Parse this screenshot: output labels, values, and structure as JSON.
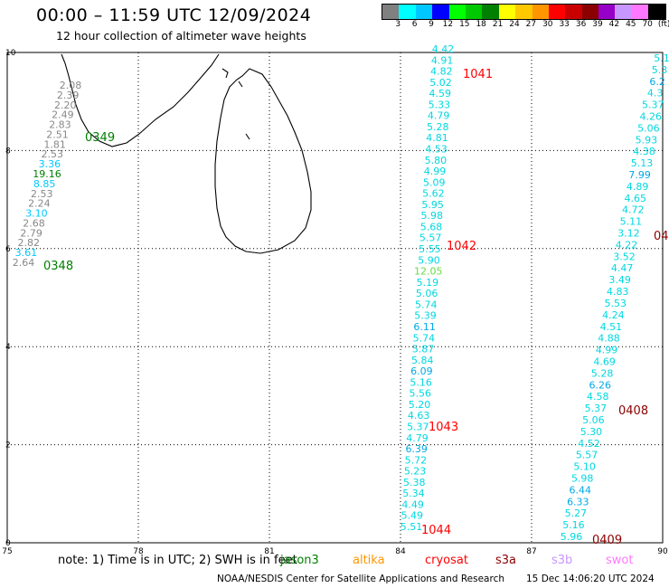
{
  "header": {
    "title": "00:00 – 11:59 UTC 12/09/2024",
    "subtitle": "12 hour collection of altimeter wave heights"
  },
  "legend": {
    "colors": [
      "#808080",
      "#00ffff",
      "#00c8ff",
      "#0000ff",
      "#00ff00",
      "#00c800",
      "#008000",
      "#ffff00",
      "#ffc800",
      "#ff9600",
      "#ff0000",
      "#c80000",
      "#8b0000",
      "#9600c8",
      "#c896ff",
      "#ff78ff",
      "#000000"
    ],
    "labels": [
      "3",
      "6",
      "9",
      "12",
      "15",
      "18",
      "21",
      "24",
      "27",
      "30",
      "33",
      "36",
      "39",
      "42",
      "45",
      "70",
      "(ft)"
    ]
  },
  "map": {
    "x_ticks": [
      "75",
      "78",
      "81",
      "84",
      "87",
      "90"
    ],
    "y_ticks": [
      "0",
      "2",
      "4",
      "6",
      "8",
      "10"
    ]
  },
  "tracks": [
    {
      "id": "left-track",
      "labels": [
        {
          "t": "2.08",
          "c": "#888888"
        },
        {
          "t": "2.39",
          "c": "#888888"
        },
        {
          "t": "2.20",
          "c": "#888888"
        },
        {
          "t": "2.49",
          "c": "#888888"
        },
        {
          "t": "2.83",
          "c": "#888888"
        },
        {
          "t": "2.51",
          "c": "#888888"
        },
        {
          "t": "1.81",
          "c": "#888888"
        },
        {
          "t": "2.53",
          "c": "#888888"
        },
        {
          "t": "3.36",
          "c": "#00c8ff"
        },
        {
          "t": "19.16",
          "c": "#008000"
        },
        {
          "t": "8.85",
          "c": "#00c8ff"
        },
        {
          "t": "2.53",
          "c": "#888888"
        },
        {
          "t": "2.24",
          "c": "#888888"
        },
        {
          "t": "3.10",
          "c": "#00c8ff"
        },
        {
          "t": "2.68",
          "c": "#888888"
        },
        {
          "t": "2.79",
          "c": "#888888"
        },
        {
          "t": "2.82",
          "c": "#888888"
        },
        {
          "t": "3.61",
          "c": "#00c8ff"
        },
        {
          "t": "2.64",
          "c": "#888888"
        }
      ]
    },
    {
      "id": "middle-track",
      "labels": [
        {
          "t": "4.42",
          "c": "#00d8e0"
        },
        {
          "t": "4.91",
          "c": "#00d8e0"
        },
        {
          "t": "4.82",
          "c": "#00d8e0"
        },
        {
          "t": "5.02",
          "c": "#00d8e0"
        },
        {
          "t": "4.59",
          "c": "#00d8e0"
        },
        {
          "t": "5.33",
          "c": "#00d8e0"
        },
        {
          "t": "4.79",
          "c": "#00d8e0"
        },
        {
          "t": "5.28",
          "c": "#00d8e0"
        },
        {
          "t": "4.81",
          "c": "#00d8e0"
        },
        {
          "t": "4.53",
          "c": "#00d8e0"
        },
        {
          "t": "5.80",
          "c": "#00d8e0"
        },
        {
          "t": "4.99",
          "c": "#00d8e0"
        },
        {
          "t": "5.09",
          "c": "#00d8e0"
        },
        {
          "t": "5.62",
          "c": "#00d8e0"
        },
        {
          "t": "5.95",
          "c": "#00d8e0"
        },
        {
          "t": "5.98",
          "c": "#00d8e0"
        },
        {
          "t": "5.68",
          "c": "#00d8e0"
        },
        {
          "t": "5.57",
          "c": "#00d8e0"
        },
        {
          "t": "5.55",
          "c": "#00d8e0"
        },
        {
          "t": "5.90",
          "c": "#00d8e0"
        },
        {
          "t": "12.05",
          "c": "#66dd44"
        },
        {
          "t": "5.19",
          "c": "#00d8e0"
        },
        {
          "t": "5.06",
          "c": "#00d8e0"
        },
        {
          "t": "5.74",
          "c": "#00d8e0"
        },
        {
          "t": "5.39",
          "c": "#00d8e0"
        },
        {
          "t": "6.11",
          "c": "#00a8e8"
        },
        {
          "t": "5.74",
          "c": "#00d8e0"
        },
        {
          "t": "5.87",
          "c": "#00d8e0"
        },
        {
          "t": "5.84",
          "c": "#00d8e0"
        },
        {
          "t": "6.09",
          "c": "#00a8e8"
        },
        {
          "t": "5.16",
          "c": "#00d8e0"
        },
        {
          "t": "5.56",
          "c": "#00d8e0"
        },
        {
          "t": "5.20",
          "c": "#00d8e0"
        },
        {
          "t": "4.63",
          "c": "#00d8e0"
        },
        {
          "t": "5.37",
          "c": "#00d8e0"
        },
        {
          "t": "4.79",
          "c": "#00d8e0"
        },
        {
          "t": "6.39",
          "c": "#00a8e8"
        },
        {
          "t": "5.72",
          "c": "#00d8e0"
        },
        {
          "t": "5.23",
          "c": "#00d8e0"
        },
        {
          "t": "5.38",
          "c": "#00d8e0"
        },
        {
          "t": "5.34",
          "c": "#00d8e0"
        },
        {
          "t": "4.49",
          "c": "#00d8e0"
        },
        {
          "t": "5.49",
          "c": "#00d8e0"
        },
        {
          "t": "5.51",
          "c": "#00d8e0"
        }
      ]
    },
    {
      "id": "right-track",
      "labels": [
        {
          "t": "5.1",
          "c": "#00d8e0"
        },
        {
          "t": "5.3",
          "c": "#00d8e0"
        },
        {
          "t": "6.2",
          "c": "#00a8e8"
        },
        {
          "t": "4.3",
          "c": "#00d8e0"
        },
        {
          "t": "5.37",
          "c": "#00d8e0"
        },
        {
          "t": "4.26",
          "c": "#00d8e0"
        },
        {
          "t": "5.06",
          "c": "#00d8e0"
        },
        {
          "t": "5.93",
          "c": "#00d8e0"
        },
        {
          "t": "4.38",
          "c": "#00d8e0"
        },
        {
          "t": "5.13",
          "c": "#00d8e0"
        },
        {
          "t": "7.99",
          "c": "#00a8e8"
        },
        {
          "t": "4.89",
          "c": "#00d8e0"
        },
        {
          "t": "4.65",
          "c": "#00d8e0"
        },
        {
          "t": "4.72",
          "c": "#00d8e0"
        },
        {
          "t": "5.11",
          "c": "#00d8e0"
        },
        {
          "t": "3.12",
          "c": "#00d8e0"
        },
        {
          "t": "4.22",
          "c": "#00d8e0"
        },
        {
          "t": "3.52",
          "c": "#00d8e0"
        },
        {
          "t": "4.47",
          "c": "#00d8e0"
        },
        {
          "t": "3.49",
          "c": "#00d8e0"
        },
        {
          "t": "4.83",
          "c": "#00d8e0"
        },
        {
          "t": "5.53",
          "c": "#00d8e0"
        },
        {
          "t": "4.24",
          "c": "#00d8e0"
        },
        {
          "t": "4.51",
          "c": "#00d8e0"
        },
        {
          "t": "4.88",
          "c": "#00d8e0"
        },
        {
          "t": "4.99",
          "c": "#00d8e0"
        },
        {
          "t": "4.69",
          "c": "#00d8e0"
        },
        {
          "t": "5.28",
          "c": "#00d8e0"
        },
        {
          "t": "6.26",
          "c": "#00a8e8"
        },
        {
          "t": "4.58",
          "c": "#00d8e0"
        },
        {
          "t": "5.37",
          "c": "#00d8e0"
        },
        {
          "t": "5.06",
          "c": "#00d8e0"
        },
        {
          "t": "5.30",
          "c": "#00d8e0"
        },
        {
          "t": "4.52",
          "c": "#00d8e0"
        },
        {
          "t": "5.57",
          "c": "#00d8e0"
        },
        {
          "t": "5.10",
          "c": "#00d8e0"
        },
        {
          "t": "5.98",
          "c": "#00d8e0"
        },
        {
          "t": "6.44",
          "c": "#00a8e8"
        },
        {
          "t": "6.33",
          "c": "#00a8e8"
        },
        {
          "t": "5.27",
          "c": "#00d8e0"
        },
        {
          "t": "5.16",
          "c": "#00d8e0"
        },
        {
          "t": "5.96",
          "c": "#00d8e0"
        }
      ]
    }
  ],
  "time_stamps": [
    {
      "t": "0349",
      "c": "#008000"
    },
    {
      "t": "0348",
      "c": "#008000"
    },
    {
      "t": "1041",
      "c": "#ff0000"
    },
    {
      "t": "1042",
      "c": "#ff0000"
    },
    {
      "t": "1043",
      "c": "#ff0000"
    },
    {
      "t": "1044",
      "c": "#ff0000"
    },
    {
      "t": "04",
      "c": "#8b0000"
    },
    {
      "t": "0408",
      "c": "#8b0000"
    },
    {
      "t": "0409",
      "c": "#8b0000"
    }
  ],
  "footer": {
    "note": "note:  1) Time is in UTC; 2) SWH is in feet",
    "satellites": [
      {
        "name": "jason3",
        "color": "#008000"
      },
      {
        "name": "altika",
        "color": "#ff9600"
      },
      {
        "name": "cryosat",
        "color": "#ff0000"
      },
      {
        "name": "s3a",
        "color": "#8b0000"
      },
      {
        "name": "s3b",
        "color": "#c896ff"
      },
      {
        "name": "swot",
        "color": "#ff78ff"
      }
    ],
    "credit": "NOAA/NESDIS Center for Satellite Applications and Research",
    "timestamp": "15 Dec 14:06:20 UTC 2024"
  }
}
